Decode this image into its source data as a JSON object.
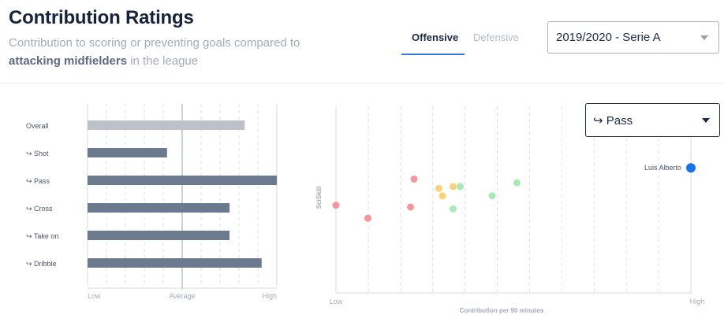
{
  "header": {
    "title": "Contribution Ratings",
    "subtitle_pre": "Contribution to scoring or preventing goals compared to",
    "subtitle_bold": "attacking midfielders",
    "subtitle_post": " in the league"
  },
  "tabs": [
    {
      "label": "Offensive",
      "active": true
    },
    {
      "label": "Defensive",
      "active": false
    }
  ],
  "season_select": {
    "value": "2019/2020 - Serie A",
    "icon": "chevron-down-icon"
  },
  "skill_select": {
    "value": "↪ Pass",
    "icon": "caret-down-icon"
  },
  "colors": {
    "accent": "#2f7bd9",
    "bar_overall": "#bcc1ca",
    "bar_skill": "#6c7a90",
    "point_player": "#1a73e8",
    "point_red": "#f7949c",
    "point_yellow": "#fbd27a",
    "point_green": "#a9e8b8"
  },
  "chart_data": [
    {
      "type": "bar",
      "orientation": "horizontal",
      "categories": [
        "Overall",
        "↪ Shot",
        "↪ Pass",
        "↪ Cross",
        "↪ Take on",
        "↪ Dribble"
      ],
      "values": [
        0.83,
        0.42,
        1.0,
        0.75,
        0.75,
        0.92
      ],
      "scale": [
        0,
        1
      ],
      "average": 0.5,
      "xticks": [
        "Low",
        "Average",
        "High"
      ]
    },
    {
      "type": "scatter",
      "xlabel": "Contribution per 90 minutes",
      "ylabel": "SciSkill",
      "xticks": [
        "Low",
        "High"
      ],
      "xlim": [
        0,
        1
      ],
      "ylim": [
        0,
        1
      ],
      "highlight_label": "Luis Alberto",
      "points": [
        {
          "x": 1.0,
          "y": 0.67,
          "group": "player"
        },
        {
          "x": 0.0,
          "y": 0.47,
          "group": "red"
        },
        {
          "x": 0.09,
          "y": 0.4,
          "group": "red"
        },
        {
          "x": 0.21,
          "y": 0.46,
          "group": "red"
        },
        {
          "x": 0.22,
          "y": 0.61,
          "group": "red"
        },
        {
          "x": 0.29,
          "y": 0.56,
          "group": "yellow"
        },
        {
          "x": 0.3,
          "y": 0.52,
          "group": "yellow"
        },
        {
          "x": 0.33,
          "y": 0.57,
          "group": "yellow"
        },
        {
          "x": 0.35,
          "y": 0.57,
          "group": "green"
        },
        {
          "x": 0.33,
          "y": 0.45,
          "group": "green"
        },
        {
          "x": 0.44,
          "y": 0.52,
          "group": "green"
        },
        {
          "x": 0.51,
          "y": 0.59,
          "group": "green"
        }
      ]
    }
  ]
}
